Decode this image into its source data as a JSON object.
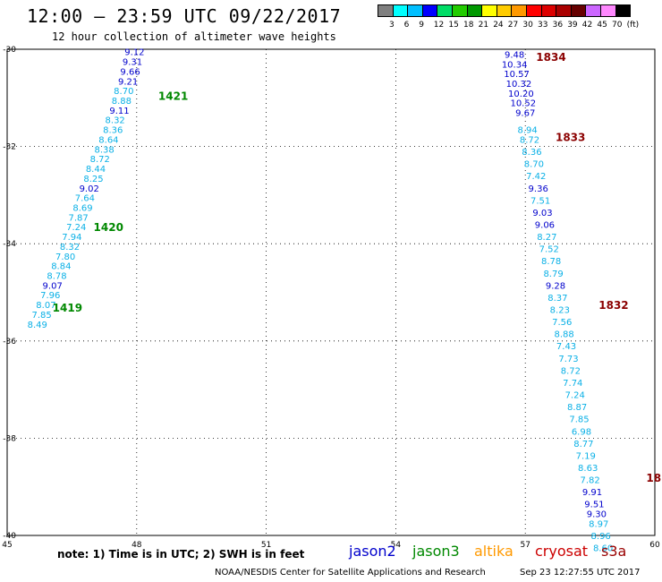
{
  "header": {
    "title": "12:00 – 23:59 UTC 09/22/2017",
    "subtitle": "12 hour collection of altimeter wave heights"
  },
  "color_scale": {
    "colors": [
      "#7f7f7f",
      "#00ffff",
      "#00bfff",
      "#0000ff",
      "#00dd66",
      "#22cc00",
      "#009900",
      "#ffff00",
      "#ffcc00",
      "#ff9900",
      "#ff0000",
      "#dd0000",
      "#aa0000",
      "#660000",
      "#cc66ff",
      "#ff88ff",
      "#000000"
    ],
    "labels": [
      "3",
      "6",
      "9",
      "12",
      "15",
      "18",
      "21",
      "24",
      "27",
      "30",
      "33",
      "36",
      "39",
      "42",
      "45",
      "70",
      "(ft)"
    ]
  },
  "footer": {
    "note": "note: 1) Time is in UTC; 2) SWH is in feet",
    "satellites": [
      {
        "name": "jason2",
        "color": "#0000cc"
      },
      {
        "name": "jason3",
        "color": "#008800"
      },
      {
        "name": "altika",
        "color": "#ff9900"
      },
      {
        "name": "cryosat",
        "color": "#cc0000"
      },
      {
        "name": "s3a",
        "color": "#990000"
      }
    ],
    "credit": "NOAA/NESDIS Center for Satellite Applications and Research",
    "timestamp": "Sep 23 12:27:55 UTC 2017"
  },
  "chart_data": {
    "type": "scatter",
    "title": "12:00 – 23:59 UTC 09/22/2017",
    "subtitle": "12 hour collection of altimeter wave heights",
    "xlim": [
      45,
      60
    ],
    "ylim": [
      -40,
      -30
    ],
    "x_ticks": [
      "45",
      "48",
      "51",
      "54",
      "57",
      "60"
    ],
    "y_ticks": [
      "-30",
      "-32",
      "-34",
      "-36",
      "-38",
      "-40"
    ],
    "grid": true,
    "track_labels": [
      {
        "text": "1421",
        "x": 48.5,
        "y": -30.95,
        "color": "#008800"
      },
      {
        "text": "1420",
        "x": 47.0,
        "y": -33.65,
        "color": "#008800"
      },
      {
        "text": "1419",
        "x": 46.05,
        "y": -35.3,
        "color": "#008800"
      },
      {
        "text": "1834",
        "x": 57.25,
        "y": -30.15,
        "color": "#8b0000"
      },
      {
        "text": "1833",
        "x": 57.7,
        "y": -31.8,
        "color": "#8b0000"
      },
      {
        "text": "1832",
        "x": 58.7,
        "y": -35.25,
        "color": "#8b0000"
      },
      {
        "text": "18",
        "x": 59.8,
        "y": -38.8,
        "color": "#8b0000"
      }
    ],
    "series": [
      {
        "name": "jason3",
        "points": [
          {
            "x": 47.95,
            "y": -30.05,
            "v": "9.12"
          },
          {
            "x": 47.9,
            "y": -30.25,
            "v": "9.31"
          },
          {
            "x": 47.85,
            "y": -30.45,
            "v": "9.66"
          },
          {
            "x": 47.8,
            "y": -30.65,
            "v": "9.21"
          },
          {
            "x": 47.7,
            "y": -30.85,
            "v": "8.70"
          },
          {
            "x": 47.65,
            "y": -31.05,
            "v": "8.88"
          },
          {
            "x": 47.6,
            "y": -31.25,
            "v": "9.11"
          },
          {
            "x": 47.5,
            "y": -31.45,
            "v": "8.32"
          },
          {
            "x": 47.45,
            "y": -31.65,
            "v": "8.36"
          },
          {
            "x": 47.35,
            "y": -31.85,
            "v": "8.64"
          },
          {
            "x": 47.25,
            "y": -32.05,
            "v": "8.38"
          },
          {
            "x": 47.15,
            "y": -32.25,
            "v": "8.72"
          },
          {
            "x": 47.05,
            "y": -32.45,
            "v": "8.44"
          },
          {
            "x": 47.0,
            "y": -32.65,
            "v": "8.25"
          },
          {
            "x": 46.9,
            "y": -32.85,
            "v": "9.02"
          },
          {
            "x": 46.8,
            "y": -33.05,
            "v": "7.64"
          },
          {
            "x": 46.75,
            "y": -33.25,
            "v": "8.69"
          },
          {
            "x": 46.65,
            "y": -33.45,
            "v": "7.87"
          },
          {
            "x": 46.6,
            "y": -33.65,
            "v": "7.24"
          },
          {
            "x": 46.5,
            "y": -33.85,
            "v": "7.94"
          },
          {
            "x": 46.45,
            "y": -34.05,
            "v": "8.32"
          },
          {
            "x": 46.35,
            "y": -34.25,
            "v": "7.80"
          },
          {
            "x": 46.25,
            "y": -34.45,
            "v": "8.84"
          },
          {
            "x": 46.15,
            "y": -34.65,
            "v": "8.78"
          },
          {
            "x": 46.05,
            "y": -34.85,
            "v": "9.07"
          },
          {
            "x": 46.0,
            "y": -35.05,
            "v": "7.96"
          },
          {
            "x": 45.9,
            "y": -35.25,
            "v": "8.07"
          },
          {
            "x": 45.8,
            "y": -35.45,
            "v": "7.85"
          },
          {
            "x": 45.7,
            "y": -35.65,
            "v": "8.49"
          }
        ]
      },
      {
        "name": "s3a",
        "points": [
          {
            "x": 56.75,
            "y": -30.1,
            "v": "9.48"
          },
          {
            "x": 56.75,
            "y": -30.3,
            "v": "10.34"
          },
          {
            "x": 56.8,
            "y": -30.5,
            "v": "10.57"
          },
          {
            "x": 56.85,
            "y": -30.7,
            "v": "10.32"
          },
          {
            "x": 56.9,
            "y": -30.9,
            "v": "10.20"
          },
          {
            "x": 56.95,
            "y": -31.1,
            "v": "10.52"
          },
          {
            "x": 57.0,
            "y": -31.3,
            "v": "9.67"
          },
          {
            "x": 57.05,
            "y": -31.65,
            "v": "8.94"
          },
          {
            "x": 57.1,
            "y": -31.85,
            "v": "8.72"
          },
          {
            "x": 57.15,
            "y": -32.1,
            "v": "8.36"
          },
          {
            "x": 57.2,
            "y": -32.35,
            "v": "8.70"
          },
          {
            "x": 57.25,
            "y": -32.6,
            "v": "7.42"
          },
          {
            "x": 57.3,
            "y": -32.85,
            "v": "9.36"
          },
          {
            "x": 57.35,
            "y": -33.1,
            "v": "7.51"
          },
          {
            "x": 57.4,
            "y": -33.35,
            "v": "9.03"
          },
          {
            "x": 57.45,
            "y": -33.6,
            "v": "9.06"
          },
          {
            "x": 57.5,
            "y": -33.85,
            "v": "8.27"
          },
          {
            "x": 57.55,
            "y": -34.1,
            "v": "7.52"
          },
          {
            "x": 57.6,
            "y": -34.35,
            "v": "8.78"
          },
          {
            "x": 57.65,
            "y": -34.6,
            "v": "8.79"
          },
          {
            "x": 57.7,
            "y": -34.85,
            "v": "9.28"
          },
          {
            "x": 57.75,
            "y": -35.1,
            "v": "8.37"
          },
          {
            "x": 57.8,
            "y": -35.35,
            "v": "8.23"
          },
          {
            "x": 57.85,
            "y": -35.6,
            "v": "7.56"
          },
          {
            "x": 57.9,
            "y": -35.85,
            "v": "8.88"
          },
          {
            "x": 57.95,
            "y": -36.1,
            "v": "7.43"
          },
          {
            "x": 58.0,
            "y": -36.35,
            "v": "7.73"
          },
          {
            "x": 58.05,
            "y": -36.6,
            "v": "8.72"
          },
          {
            "x": 58.1,
            "y": -36.85,
            "v": "7.74"
          },
          {
            "x": 58.15,
            "y": -37.1,
            "v": "7.24"
          },
          {
            "x": 58.2,
            "y": -37.35,
            "v": "8.87"
          },
          {
            "x": 58.25,
            "y": -37.6,
            "v": "7.85"
          },
          {
            "x": 58.3,
            "y": -37.85,
            "v": "6.98"
          },
          {
            "x": 58.35,
            "y": -38.1,
            "v": "8.77"
          },
          {
            "x": 58.4,
            "y": -38.35,
            "v": "7.19"
          },
          {
            "x": 58.45,
            "y": -38.6,
            "v": "8.63"
          },
          {
            "x": 58.5,
            "y": -38.85,
            "v": "7.82"
          },
          {
            "x": 58.55,
            "y": -39.1,
            "v": "9.91"
          },
          {
            "x": 58.6,
            "y": -39.35,
            "v": "9.51"
          },
          {
            "x": 58.65,
            "y": -39.55,
            "v": "9.30"
          },
          {
            "x": 58.7,
            "y": -39.75,
            "v": "8.97"
          },
          {
            "x": 58.75,
            "y": -40.0,
            "v": "8.96"
          },
          {
            "x": 58.8,
            "y": -40.25,
            "v": "8.60"
          }
        ]
      }
    ]
  }
}
